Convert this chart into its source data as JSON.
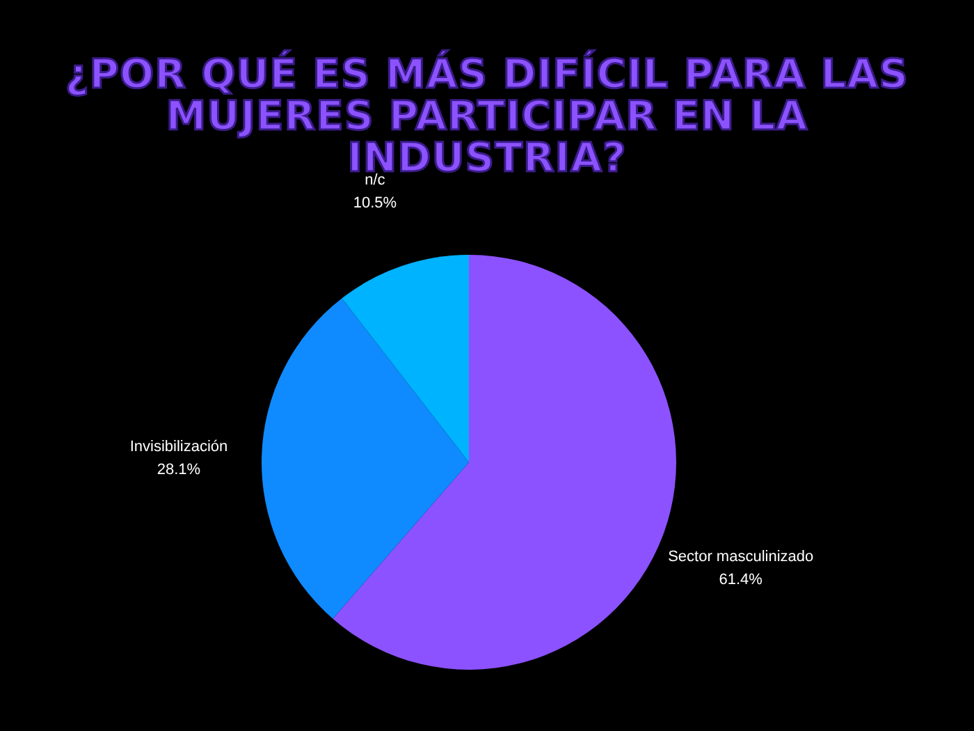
{
  "chart_data": {
    "type": "pie",
    "title": "¿POR QUÉ ES MÁS DIFÍCIL PARA LAS MUJERES PARTICIPAR EN LA INDUSTRIA?",
    "categories": [
      "Sector masculinizado",
      "Invisibilización",
      "n/c"
    ],
    "values": [
      61.4,
      28.1,
      10.5
    ],
    "value_labels": [
      "61.4%",
      "28.1%",
      "10.5%"
    ],
    "colors": [
      "#8c52ff",
      "#0f8bff",
      "#00b3ff"
    ]
  }
}
